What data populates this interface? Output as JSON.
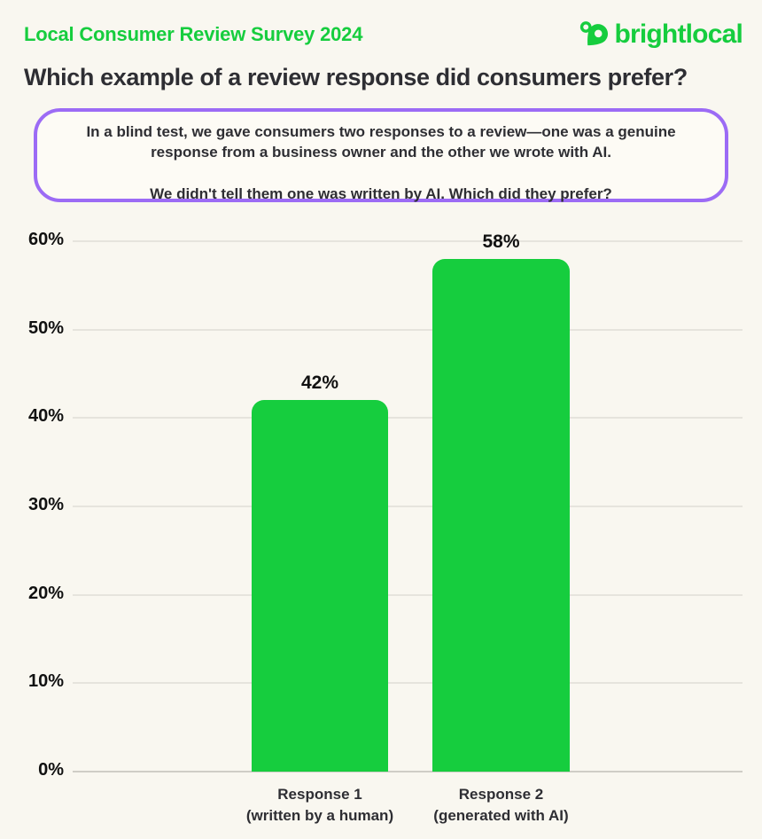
{
  "header": {
    "survey_title": "Local Consumer Review Survey 2024",
    "brand": "brightlocal"
  },
  "title": "Which example of a review response did consumers prefer?",
  "callout": {
    "line1": "In a blind test, we gave consumers two responses to a review—one was a genuine response from a business owner and the other we wrote with AI.",
    "line2": "We didn't tell them one was written by AI. Which did they prefer?"
  },
  "chart_data": {
    "type": "bar",
    "title": "Which example of a review response did consumers prefer?",
    "categories": [
      "Response 1\n(written by a human)",
      "Response 2\n(generated with AI)"
    ],
    "values": [
      42,
      58
    ],
    "value_labels": [
      "42%",
      "58%"
    ],
    "ylim": [
      0,
      60
    ],
    "yticks": [
      {
        "value": 0,
        "label": "0%"
      },
      {
        "value": 10,
        "label": "10%"
      },
      {
        "value": 20,
        "label": "20%"
      },
      {
        "value": 30,
        "label": "30%"
      },
      {
        "value": 40,
        "label": "40%"
      },
      {
        "value": 50,
        "label": "50%"
      },
      {
        "value": 60,
        "label": "60%"
      }
    ],
    "grid": true,
    "legend": false,
    "bar_color": "#16CD3E"
  },
  "colors": {
    "accent": "#16CD3E",
    "background": "#F9F7F0",
    "callout_border": "#9C6BF5",
    "callout_bg": "#FDFBF5",
    "text_dark": "#2E2E33",
    "gridline": "#E6E4DD",
    "baseline": "#CFCDC6"
  }
}
